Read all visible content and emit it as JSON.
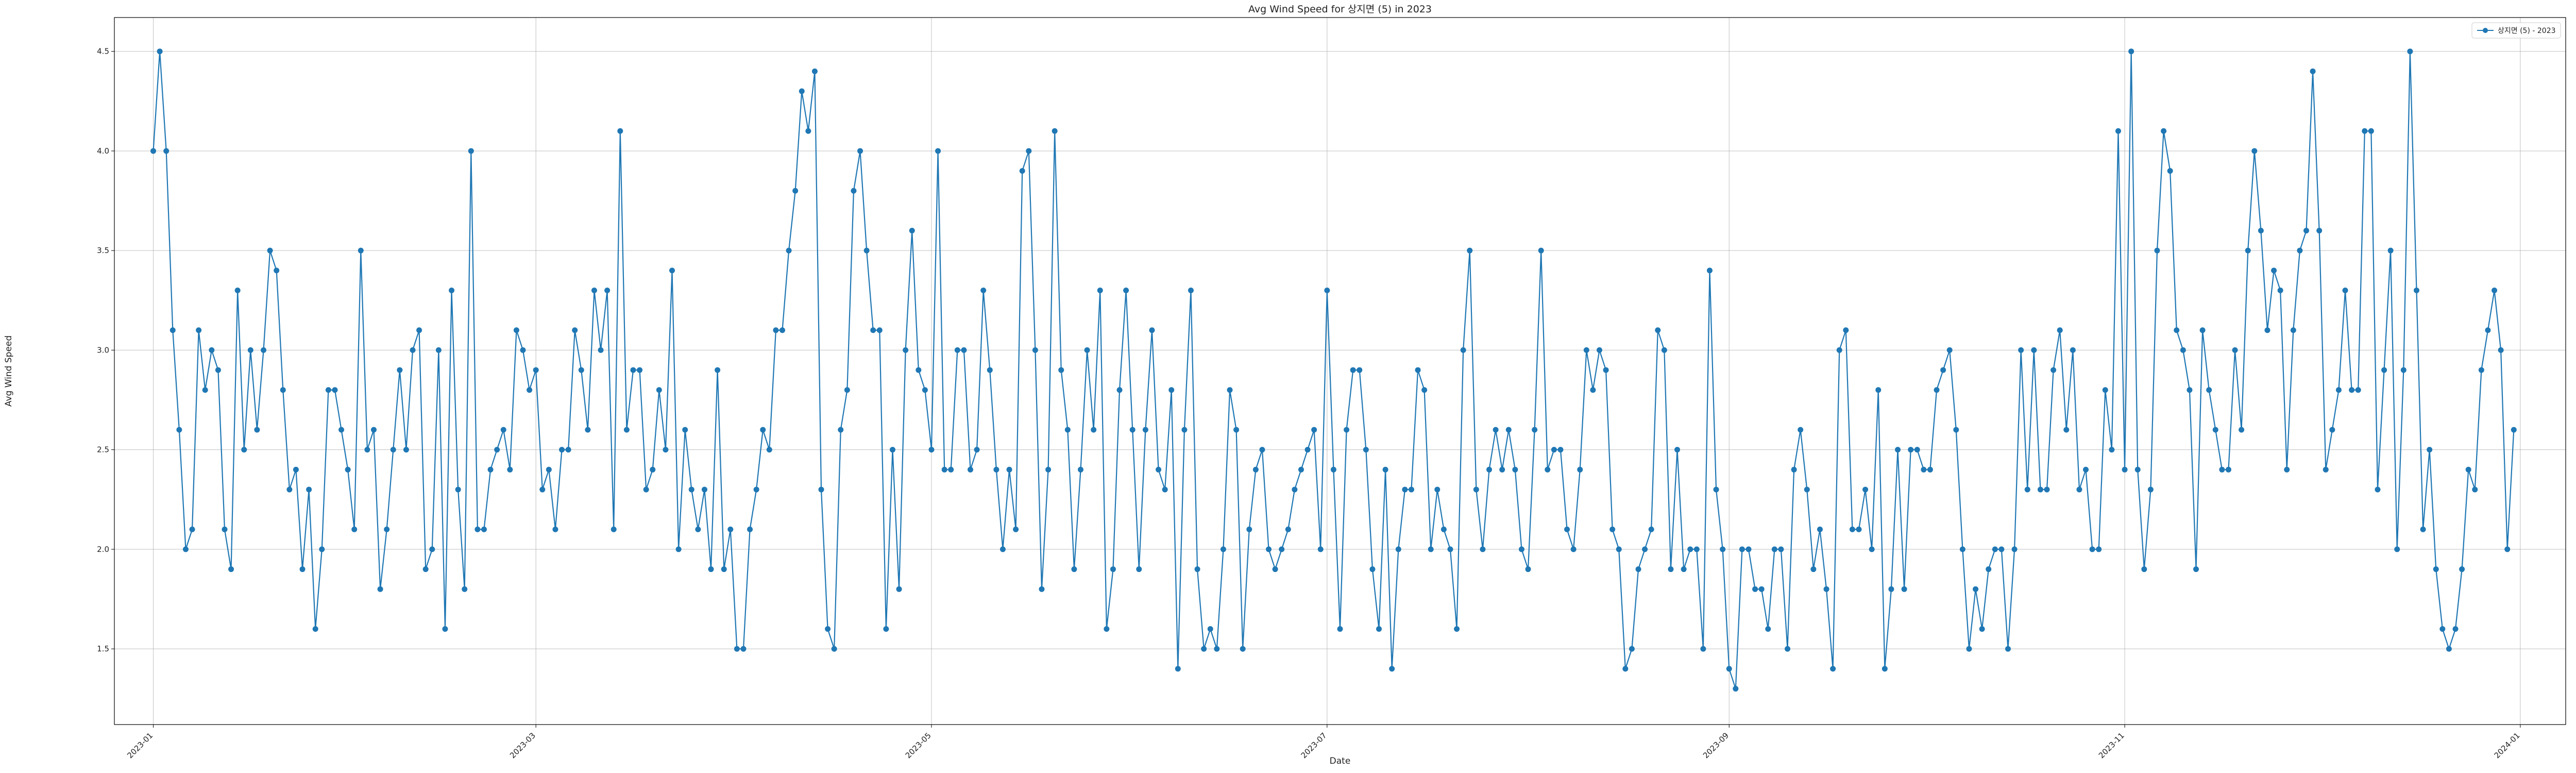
{
  "chart_data": {
    "type": "line",
    "title": "Avg Wind Speed for 상지면 (5) in 2023",
    "xlabel": "Date",
    "ylabel": "Avg Wind Speed",
    "xlim": [
      "2022-12-26",
      "2024-01-08"
    ],
    "ylim": [
      1.12,
      4.67
    ],
    "grid": true,
    "legend_position": "top-right",
    "color": "#1f77b4",
    "x_ticks": [
      "2023-01",
      "2023-03",
      "2023-05",
      "2023-07",
      "2023-09",
      "2023-11",
      "2024-01"
    ],
    "x_tick_dates": [
      "2023-01-01",
      "2023-03-01",
      "2023-05-01",
      "2023-07-01",
      "2023-09-01",
      "2023-11-01",
      "2024-01-01"
    ],
    "y_ticks": [
      1.5,
      2.0,
      2.5,
      3.0,
      3.5,
      4.0,
      4.5
    ],
    "y_tick_labels": [
      "1.5",
      "2.0",
      "2.5",
      "3.0",
      "3.5",
      "4.0",
      "4.5"
    ],
    "x_start": "2023-01-01",
    "x_end": "2023-12-31",
    "series": [
      {
        "name": "상지면 (5) - 2023",
        "values": [
          4.0,
          4.5,
          4.0,
          3.1,
          2.6,
          2.0,
          2.1,
          3.1,
          2.8,
          3.0,
          2.9,
          2.1,
          1.9,
          3.3,
          2.5,
          3.0,
          2.6,
          3.0,
          3.5,
          3.4,
          2.8,
          2.3,
          2.4,
          1.9,
          2.3,
          1.6,
          2.0,
          2.8,
          2.8,
          2.6,
          2.4,
          2.1,
          3.5,
          2.5,
          2.6,
          1.8,
          2.1,
          2.5,
          2.9,
          2.5,
          3.0,
          3.1,
          1.9,
          2.0,
          3.0,
          1.6,
          3.3,
          2.3,
          1.8,
          4.0,
          2.1,
          2.1,
          2.4,
          2.5,
          2.6,
          2.4,
          3.1,
          3.0,
          2.8,
          2.9,
          2.3,
          2.4,
          2.1,
          2.5,
          2.5,
          3.1,
          2.9,
          2.6,
          3.3,
          3.0,
          3.3,
          2.1,
          4.1,
          2.6,
          2.9,
          2.9,
          2.3,
          2.4,
          2.8,
          2.5,
          3.4,
          2.0,
          2.6,
          2.3,
          2.1,
          2.3,
          1.9,
          2.9,
          1.9,
          2.1,
          1.5,
          1.5,
          2.1,
          2.3,
          2.6,
          2.5,
          3.1,
          3.1,
          3.5,
          3.8,
          4.3,
          4.1,
          4.4,
          2.3,
          1.6,
          1.5,
          2.6,
          2.8,
          3.8,
          4.0,
          3.5,
          3.1,
          3.1,
          1.6,
          2.5,
          1.8,
          3.0,
          3.6,
          2.9,
          2.8,
          2.5,
          4.0,
          2.4,
          2.4,
          3.0,
          3.0,
          2.4,
          2.5,
          3.3,
          2.9,
          2.4,
          2.0,
          2.4,
          2.1,
          3.9,
          4.0,
          3.0,
          1.8,
          2.4,
          4.1,
          2.9,
          2.6,
          1.9,
          2.4,
          3.0,
          2.6,
          3.3,
          1.6,
          1.9,
          2.8,
          3.3,
          2.6,
          1.9,
          2.6,
          3.1,
          2.4,
          2.3,
          2.8,
          1.4,
          2.6,
          3.3,
          1.9,
          1.5,
          1.6,
          1.5,
          2.0,
          2.8,
          2.6,
          1.5,
          2.1,
          2.4,
          2.5,
          2.0,
          1.9,
          2.0,
          2.1,
          2.3,
          2.4,
          2.5,
          2.6,
          2.0,
          3.3,
          2.4,
          1.6,
          2.6,
          2.9,
          2.9,
          2.5,
          1.9,
          1.6,
          2.4,
          1.4,
          2.0,
          2.3,
          2.3,
          2.9,
          2.8,
          2.0,
          2.3,
          2.1,
          2.0,
          1.6,
          3.0,
          3.5,
          2.3,
          2.0,
          2.4,
          2.6,
          2.4,
          2.6,
          2.4,
          2.0,
          1.9,
          2.6,
          3.5,
          2.4,
          2.5,
          2.5,
          2.1,
          2.0,
          2.4,
          3.0,
          2.8,
          3.0,
          2.9,
          2.1,
          2.0,
          1.4,
          1.5,
          1.9,
          2.0,
          2.1,
          3.1,
          3.0,
          1.9,
          2.5,
          1.9,
          2.0,
          2.0,
          1.5,
          3.4,
          2.3,
          2.0,
          1.4,
          1.3,
          2.0,
          2.0,
          1.8,
          1.8,
          1.6,
          2.0,
          2.0,
          1.5,
          2.4,
          2.6,
          2.3,
          1.9,
          2.1,
          1.8,
          1.4,
          3.0,
          3.1,
          2.1,
          2.1,
          2.3,
          2.0,
          2.8,
          1.4,
          1.8,
          2.5,
          1.8,
          2.5,
          2.5,
          2.4,
          2.4,
          2.8,
          2.9,
          3.0,
          2.6,
          2.0,
          1.5,
          1.8,
          1.6,
          1.9,
          2.0,
          2.0,
          1.5,
          2.0,
          3.0,
          2.3,
          3.0,
          2.3,
          2.3,
          2.9,
          3.1,
          2.6,
          3.0,
          2.3,
          2.4,
          2.0,
          2.0,
          2.8,
          2.5,
          4.1,
          2.4,
          4.5,
          2.4,
          1.9,
          2.3,
          3.5,
          4.1,
          3.9,
          3.1,
          3.0,
          2.8,
          1.9,
          3.1,
          2.8,
          2.6,
          2.4,
          2.4,
          3.0,
          2.6,
          3.5,
          4.0,
          3.6,
          3.1,
          3.4,
          3.3,
          2.4,
          3.1,
          3.5,
          3.6,
          4.4,
          3.6,
          2.4,
          2.6,
          2.8,
          3.3,
          2.8,
          2.8,
          4.1,
          4.1,
          2.3,
          2.9,
          3.5,
          2.0,
          2.9,
          4.5,
          3.3,
          2.1,
          2.5,
          1.9,
          1.6,
          1.5,
          1.6,
          1.9,
          2.4,
          2.3,
          2.9,
          3.1,
          3.3,
          3.0,
          2.0,
          2.6
        ]
      }
    ]
  }
}
